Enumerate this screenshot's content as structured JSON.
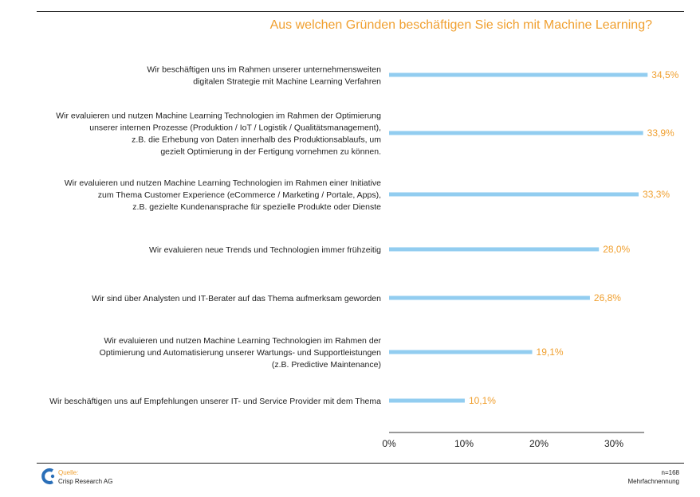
{
  "header": {
    "title": "Aus welchen Gründen beschäftigen Sie sich mit Machine Learning?"
  },
  "footer": {
    "source_label": "Quelle:",
    "source_value": "Crisp Research AG",
    "sample": "n=168",
    "note": "Mehrfachnennung"
  },
  "colors": {
    "bar": "#92cdf0",
    "value": "#f0a030",
    "title": "#f0a030"
  },
  "chart_data": {
    "type": "bar",
    "orientation": "horizontal",
    "title": "Aus welchen Gründen beschäftigen Sie sich mit Machine Learning?",
    "categories": [
      [
        "Wir beschäftigen uns im Rahmen unserer unternehmensweiten",
        "digitalen Strategie mit Machine Learning Verfahren"
      ],
      [
        "Wir evaluieren und nutzen Machine Learning Technologien im Rahmen der Optimierung",
        "unserer internen Prozesse (Produktion / IoT / Logistik / Qualitätsmanagement),",
        "z.B. die Erhebung von Daten innerhalb des Produktionsablaufs, um",
        "gezielt Optimierung in der Fertigung vornehmen zu können."
      ],
      [
        "Wir evaluieren und nutzen Machine Learning Technologien im Rahmen einer Initiative",
        "zum Thema Customer Experience (eCommerce / Marketing / Portale, Apps),",
        "z.B. gezielte Kundenansprache für spezielle Produkte oder Dienste"
      ],
      [
        "Wir evaluieren neue Trends und Technologien immer frühzeitig"
      ],
      [
        "Wir sind über Analysten und IT-Berater auf das Thema aufmerksam geworden"
      ],
      [
        "Wir evaluieren und nutzen Machine Learning Technologien im Rahmen der",
        "Optimierung und Automatisierung unserer Wartungs- und Supportleistungen",
        "(z.B. Predictive Maintenance)"
      ],
      [
        "Wir beschäftigen uns auf Empfehlungen unserer IT- und Service Provider mit dem Thema"
      ]
    ],
    "values": [
      34.5,
      33.9,
      33.3,
      28.0,
      26.8,
      19.1,
      10.1
    ],
    "value_labels": [
      "34,5%",
      "33,9%",
      "33,3%",
      "28,0%",
      "26,8%",
      "19,1%",
      "10,1%"
    ],
    "xlim": [
      0,
      35
    ],
    "xticks": [
      0,
      10,
      20,
      30
    ],
    "xtick_labels": [
      "0%",
      "10%",
      "20%",
      "30%"
    ],
    "grid": false
  }
}
